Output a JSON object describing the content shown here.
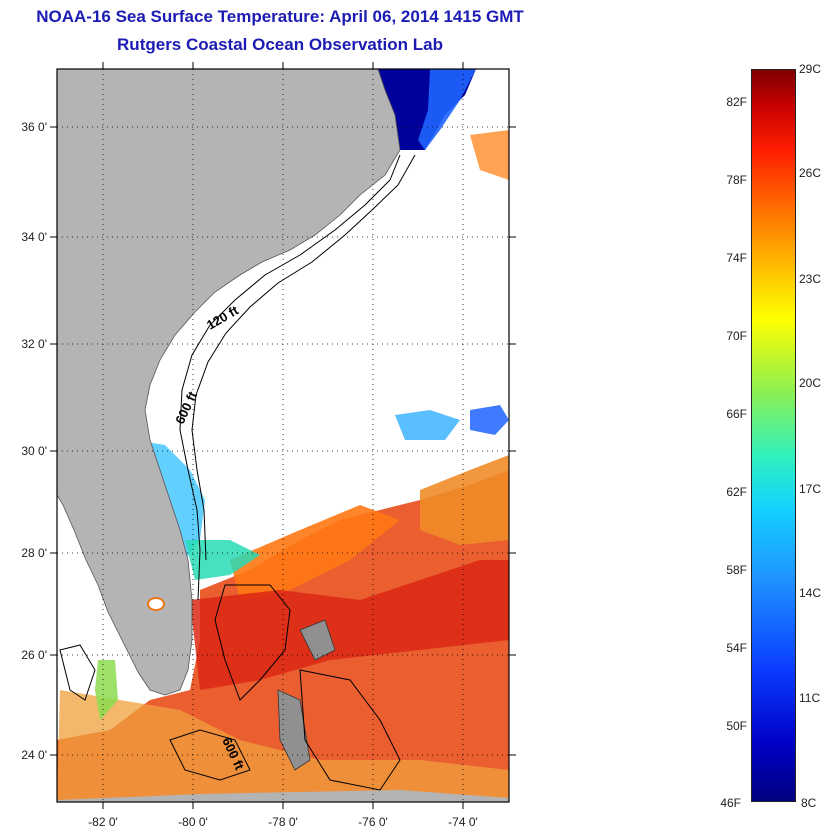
{
  "title": {
    "line1": "NOAA-16 Sea Surface Temperature:  April 06, 2014 1415 GMT",
    "line2": "Rutgers Coastal Ocean Observation Lab"
  },
  "map": {
    "lat_labels": [
      "36 0'",
      "34 0'",
      "32 0'",
      "30 0'",
      "28 0'",
      "26 0'",
      "24 0'"
    ],
    "lon_labels": [
      "-82 0'",
      "-80 0'",
      "-78 0'",
      "-76 0'",
      "-74 0'"
    ],
    "contour_labels": [
      "120 ft",
      "600 ft",
      "600 ft"
    ],
    "colors": {
      "land": "#b4b4b4",
      "ocean_no_data": "#ffffff"
    }
  },
  "colorbar": {
    "fahrenheit_labels": [
      "82F",
      "78F",
      "74F",
      "70F",
      "66F",
      "62F",
      "58F",
      "54F",
      "50F",
      "46F"
    ],
    "celsius_labels": [
      "29C",
      "26C",
      "23C",
      "20C",
      "17C",
      "14C",
      "11C",
      "8C"
    ],
    "colormap": "jet",
    "range_celsius": [
      8,
      29
    ]
  }
}
